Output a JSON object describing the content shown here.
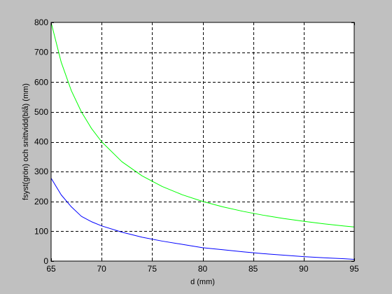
{
  "colors": {
    "figure_background": "#c0c0c0",
    "axes_background": "#ffffff",
    "axes_border": "#000000",
    "grid": "#000000"
  },
  "chart_data": {
    "type": "line",
    "title": "",
    "xlabel": "d (mm)",
    "ylabel": "fsyst(grön) och snittvidd(blå) (mm)",
    "xlim": [
      65,
      95
    ],
    "ylim": [
      0,
      800
    ],
    "xticks": [
      65,
      70,
      75,
      80,
      85,
      90,
      95
    ],
    "yticks": [
      0,
      100,
      200,
      300,
      400,
      500,
      600,
      700,
      800
    ],
    "grid": true,
    "grid_style": "dashed",
    "legend": "none",
    "x": [
      65,
      66,
      67,
      68,
      69,
      70,
      72,
      74,
      76,
      78,
      80,
      82,
      84,
      86,
      88,
      90,
      92,
      94,
      95
    ],
    "series": [
      {
        "color": "#00ff00",
        "values": [
          800,
          666.7,
          571.4,
          500,
          444.4,
          400,
          333.3,
          285.7,
          250,
          222.2,
          200,
          181.8,
          166.7,
          153.8,
          142.9,
          133.3,
          125,
          117.6,
          114.3
        ]
      },
      {
        "color": "#0000ff",
        "values": [
          278,
          222,
          182,
          150,
          132,
          118,
          97,
          80,
          67,
          56,
          45,
          38,
          31,
          25,
          20,
          15,
          11,
          8,
          6
        ]
      }
    ]
  }
}
